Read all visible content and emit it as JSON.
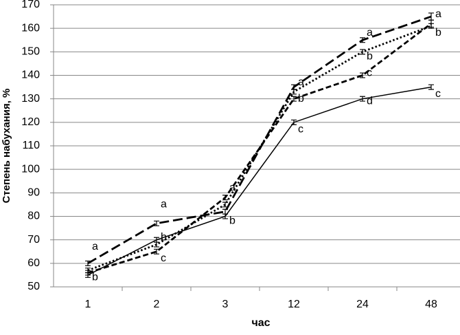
{
  "chart_data": {
    "type": "line",
    "x_label": "час",
    "y_label": "Степень набухания, %",
    "categories": [
      "1",
      "2",
      "3",
      "12",
      "24",
      "48"
    ],
    "ylim": [
      50,
      170
    ],
    "yticks": [
      50,
      60,
      70,
      80,
      90,
      100,
      110,
      120,
      130,
      140,
      150,
      160,
      170
    ],
    "grid": true,
    "series": [
      {
        "color": "#000000",
        "dash": "solid",
        "values": [
          55,
          70,
          80,
          120,
          130,
          135
        ],
        "errors": [
          1,
          1,
          1,
          1,
          1,
          1
        ]
      },
      {
        "color": "#000000",
        "dash": "long-dash",
        "values": [
          60,
          77,
          82,
          135,
          155,
          165
        ],
        "errors": [
          1,
          1,
          1,
          1,
          1,
          1.5
        ]
      },
      {
        "color": "#000000",
        "dash": "dot",
        "values": [
          57,
          68,
          85,
          133,
          150,
          161
        ],
        "errors": [
          1,
          1,
          1,
          1,
          1,
          1
        ]
      },
      {
        "color": "#000000",
        "dash": "dash",
        "values": [
          56,
          65,
          88,
          130,
          140,
          162
        ],
        "errors": [
          1,
          1,
          1,
          1,
          1,
          1.5
        ]
      }
    ],
    "annotations": [
      {
        "text": "a",
        "x": 0,
        "y": 67
      },
      {
        "text": "b",
        "x": 0,
        "y": 54
      },
      {
        "text": "a",
        "x": 1,
        "y": 85
      },
      {
        "text": "b",
        "x": 1,
        "y": 71
      },
      {
        "text": "c",
        "x": 1,
        "y": 62
      },
      {
        "text": "a",
        "x": 2,
        "y": 92
      },
      {
        "text": "b",
        "x": 2,
        "y": 78
      },
      {
        "text": "a",
        "x": 3,
        "y": 137
      },
      {
        "text": "b",
        "x": 3,
        "y": 130
      },
      {
        "text": "c",
        "x": 3,
        "y": 117
      },
      {
        "text": "a",
        "x": 4,
        "y": 158
      },
      {
        "text": "b",
        "x": 4,
        "y": 148
      },
      {
        "text": "c",
        "x": 4,
        "y": 141
      },
      {
        "text": "d",
        "x": 4,
        "y": 129
      },
      {
        "text": "a",
        "x": 5,
        "y": 166
      },
      {
        "text": "b",
        "x": 5,
        "y": 158
      },
      {
        "text": "c",
        "x": 5,
        "y": 132
      }
    ]
  }
}
